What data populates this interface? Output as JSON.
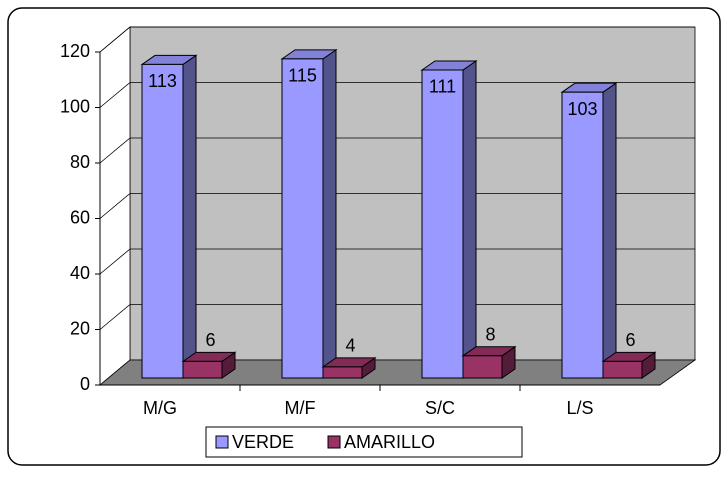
{
  "chart_data": {
    "type": "bar",
    "categories": [
      "M/G",
      "M/F",
      "S/C",
      "L/S"
    ],
    "series": [
      {
        "name": "VERDE",
        "color": "#9999ff",
        "values": [
          113,
          115,
          111,
          103
        ]
      },
      {
        "name": "AMARILLO",
        "color": "#993366",
        "values": [
          6,
          4,
          8,
          6
        ]
      }
    ],
    "ylim": [
      0,
      120
    ],
    "yticks": [
      0,
      20,
      40,
      60,
      80,
      100,
      120
    ],
    "grid": true,
    "legend": "bottom"
  }
}
